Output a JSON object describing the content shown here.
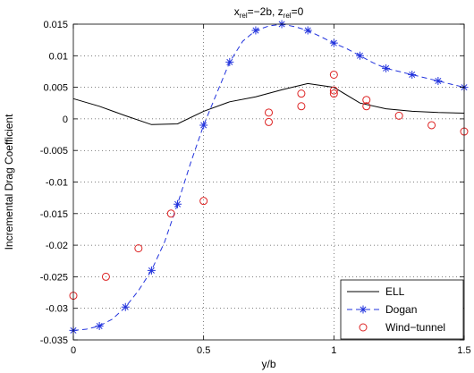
{
  "chart_data": {
    "type": "line",
    "title": {
      "main": "x",
      "sub1": "rel",
      "mid": "=−2b, z",
      "sub2": "rel",
      "end": "=0"
    },
    "xlabel": "y/b",
    "ylabel": "Incremental Drag Coefficient",
    "xlim": [
      0,
      1.5
    ],
    "ylim": [
      -0.035,
      0.015
    ],
    "xticks": [
      0,
      0.5,
      1,
      1.5
    ],
    "xtick_labels": [
      "0",
      "0.5",
      "1",
      "1.5"
    ],
    "yticks": [
      -0.035,
      -0.03,
      -0.025,
      -0.02,
      -0.015,
      -0.01,
      -0.005,
      0,
      0.005,
      0.01,
      0.015
    ],
    "ytick_labels": [
      "-0.035",
      "-0.03",
      "-0.025",
      "-0.02",
      "-0.015",
      "-0.01",
      "-0.005",
      "0",
      "0.005",
      "0.01",
      "0.015"
    ],
    "grid": true,
    "legend_position": "bottom-right",
    "series": [
      {
        "name": "ELL",
        "style": "solid",
        "color": "#000000",
        "x": [
          0,
          0.1,
          0.2,
          0.3,
          0.4,
          0.5,
          0.6,
          0.7,
          0.8,
          0.9,
          1.0,
          1.1,
          1.2,
          1.3,
          1.4,
          1.5
        ],
        "y": [
          0.0032,
          0.002,
          0.0005,
          -0.0009,
          -0.0008,
          0.0012,
          0.0027,
          0.0035,
          0.0046,
          0.0056,
          0.005,
          0.0025,
          0.0016,
          0.0012,
          0.001,
          0.0009
        ]
      },
      {
        "name": "Dogan",
        "style": "dashed",
        "marker": "*",
        "color": "#2233dd",
        "x": [
          0,
          0.05,
          0.1,
          0.15,
          0.2,
          0.25,
          0.3,
          0.35,
          0.4,
          0.45,
          0.5,
          0.55,
          0.6,
          0.65,
          0.7,
          0.75,
          0.8,
          0.85,
          0.9,
          0.95,
          1.0,
          1.05,
          1.1,
          1.15,
          1.2,
          1.25,
          1.3,
          1.35,
          1.4,
          1.45,
          1.5
        ],
        "y": [
          -0.0335,
          -0.0333,
          -0.0328,
          -0.0317,
          -0.0298,
          -0.0272,
          -0.024,
          -0.0195,
          -0.0135,
          -0.007,
          -0.001,
          0.004,
          0.009,
          0.0123,
          0.014,
          0.0147,
          0.015,
          0.0146,
          0.014,
          0.013,
          0.012,
          0.0111,
          0.01,
          0.0089,
          0.008,
          0.0075,
          0.007,
          0.0065,
          0.006,
          0.0055,
          0.005
        ],
        "marker_x": [
          0,
          0.1,
          0.2,
          0.3,
          0.4,
          0.5,
          0.6,
          0.7,
          0.8,
          0.9,
          1.0,
          1.1,
          1.2,
          1.3,
          1.4,
          1.5
        ],
        "marker_y": [
          -0.0335,
          -0.0328,
          -0.0298,
          -0.024,
          -0.0135,
          -0.001,
          0.009,
          0.014,
          0.015,
          0.014,
          0.012,
          0.01,
          0.008,
          0.007,
          0.006,
          0.005
        ]
      },
      {
        "name": "Wind−tunnel",
        "style": "none",
        "marker": "o",
        "color": "#dd2222",
        "x": [
          0,
          0.125,
          0.25,
          0.375,
          0.5,
          0.75,
          0.75,
          0.875,
          0.875,
          1.0,
          1.0,
          1.0,
          1.125,
          1.125,
          1.25,
          1.375,
          1.5
        ],
        "y": [
          -0.028,
          -0.025,
          -0.0205,
          -0.015,
          -0.013,
          0.001,
          -0.0005,
          0.004,
          0.002,
          0.007,
          0.0045,
          0.004,
          0.003,
          0.002,
          0.0005,
          -0.001,
          -0.002
        ]
      }
    ]
  }
}
